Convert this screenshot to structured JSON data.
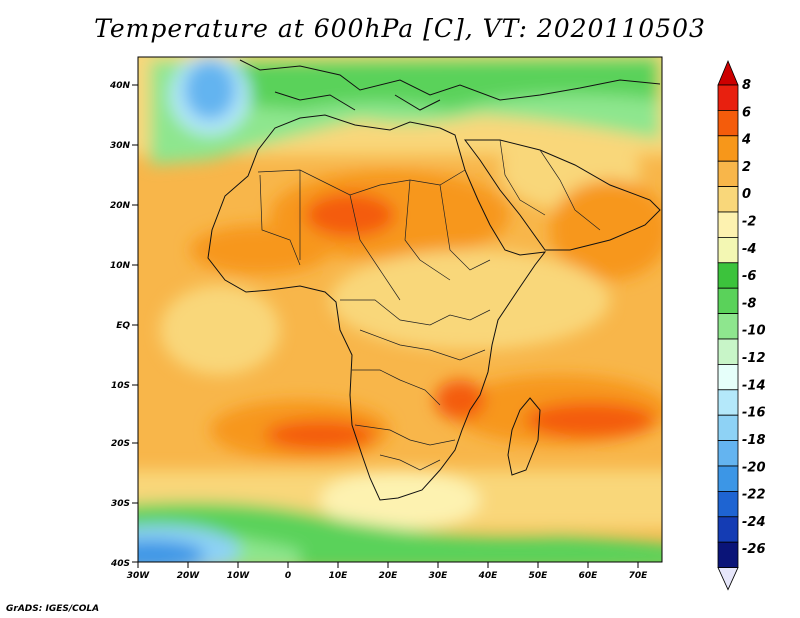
{
  "title": "Temperature at 600hPa [C], VT: 2020110503",
  "credit": "GrADS: IGES/COLA",
  "map": {
    "lat_labels": [
      "40N",
      "30N",
      "20N",
      "10N",
      "EQ",
      "10S",
      "20S",
      "30S",
      "40S"
    ],
    "lon_labels": [
      "30W",
      "20W",
      "10W",
      "0",
      "10E",
      "20E",
      "30E",
      "40E",
      "50E",
      "60E",
      "70E"
    ]
  },
  "colorbar": {
    "labels": [
      "8",
      "6",
      "4",
      "2",
      "0",
      "-2",
      "-4",
      "-6",
      "-8",
      "-10",
      "-12",
      "-14",
      "-16",
      "-18",
      "-20",
      "-22",
      "-24",
      "-26"
    ],
    "colors": [
      "#e8200f",
      "#f45c0b",
      "#f7971a",
      "#f8b64a",
      "#f9d77a",
      "#fdf2b0",
      "#f3f7b3",
      "#3cc33c",
      "#5ad25a",
      "#8ee68e",
      "#c8f5c8",
      "#e6fffa",
      "#b4e8fa",
      "#8ed2f5",
      "#64b4f0",
      "#3c96e6",
      "#1e64d2",
      "#143cb4",
      "#0a1478",
      "#e6e6fa"
    ],
    "top_color": "#cc0000",
    "bottom_color": "#e6e6fa"
  }
}
